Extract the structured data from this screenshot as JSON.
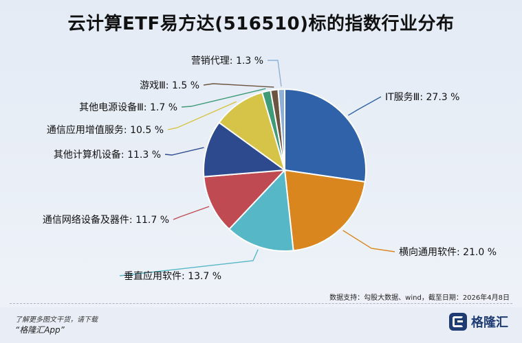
{
  "title": "云计算ETF易方达(516510)标的指数行业分布",
  "source": "数据支持：勾股大数据、wind，截至日期：2026年4月8日",
  "footer": {
    "line1": "了解更多图文干货，请下载",
    "line2": "“格隆汇App”"
  },
  "brand": {
    "name": "格隆汇",
    "icon": "gelonghui-logo-icon"
  },
  "chart_data": {
    "type": "pie",
    "unit": "%",
    "slices": [
      {
        "label": "IT服务Ⅲ",
        "value": 27.3,
        "display": "IT服务Ⅲ: 27.3 %",
        "color": "#2f62a8"
      },
      {
        "label": "横向通用软件",
        "value": 21.0,
        "display": "横向通用软件: 21.0 %",
        "color": "#d9861f"
      },
      {
        "label": "垂直应用软件",
        "value": 13.7,
        "display": "垂直应用软件: 13.7 %",
        "color": "#56b7c6"
      },
      {
        "label": "通信网络设备及器件",
        "value": 11.7,
        "display": "通信网络设备及器件: 11.7 %",
        "color": "#c04a52"
      },
      {
        "label": "其他计算机设备",
        "value": 11.3,
        "display": "其他计算机设备: 11.3 %",
        "color": "#2d4a8e"
      },
      {
        "label": "通信应用增值服务",
        "value": 10.5,
        "display": "通信应用增值服务: 10.5 %",
        "color": "#d6c448"
      },
      {
        "label": "其他电源设备Ⅲ",
        "value": 1.7,
        "display": "其他电源设备Ⅲ: 1.7 %",
        "color": "#3f9b77"
      },
      {
        "label": "游戏Ⅲ",
        "value": 1.5,
        "display": "游戏Ⅲ: 1.5 %",
        "color": "#6b5440"
      },
      {
        "label": "营销代理",
        "value": 1.3,
        "display": "营销代理: 1.3 %",
        "color": "#8fb0d6"
      }
    ]
  }
}
